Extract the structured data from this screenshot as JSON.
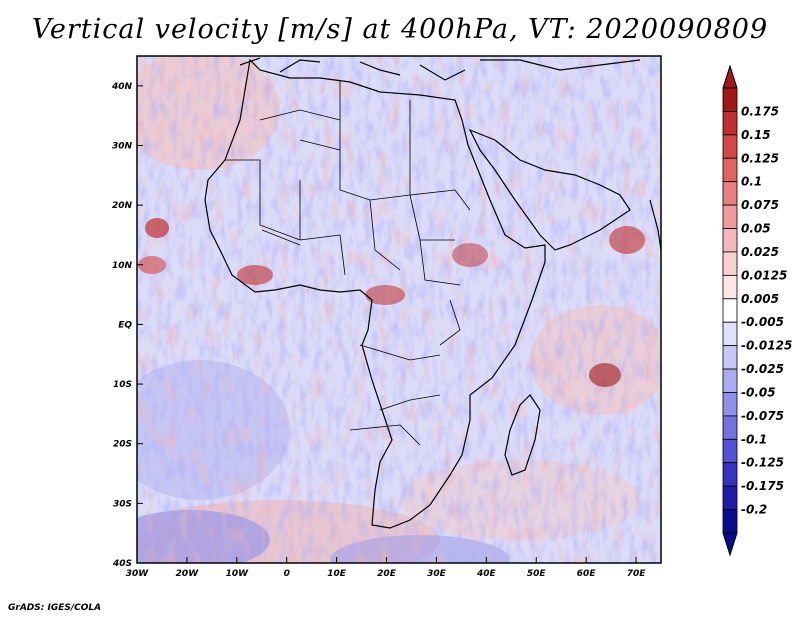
{
  "title": "Vertical velocity [m/s] at 400hPa, VT: 2020090809",
  "credit": "GrADS: IGES/COLA",
  "map": {
    "lon_range": [
      -30,
      75
    ],
    "lat_range": [
      -40,
      45
    ],
    "lon_ticks": [
      "30W",
      "20W",
      "10W",
      "0",
      "10E",
      "20E",
      "30E",
      "40E",
      "50E",
      "60E",
      "70E"
    ],
    "lat_ticks": [
      "40N",
      "30N",
      "20N",
      "10N",
      "EQ",
      "10S",
      "20S",
      "30S",
      "40S"
    ]
  },
  "colorbar": {
    "labels": [
      "0.175",
      "0.15",
      "0.125",
      "0.1",
      "0.075",
      "0.05",
      "0.025",
      "0.0125",
      "0.005",
      "-0.005",
      "-0.0125",
      "-0.025",
      "-0.05",
      "-0.075",
      "-0.1",
      "-0.125",
      "-0.175",
      "-0.2"
    ],
    "colors": [
      "#a01818",
      "#c03030",
      "#d44848",
      "#e06464",
      "#e88080",
      "#ef9c9c",
      "#f4b8b8",
      "#f8d0d0",
      "#fce6e6",
      "#ffffff",
      "#e0e0fa",
      "#c8c8f6",
      "#ababf0",
      "#9090ea",
      "#7272e0",
      "#5252d2",
      "#3434c0",
      "#1c1ca8",
      "#0a0a8e"
    ],
    "top_color": "#a01818",
    "bottom_color": "#0a0a8e"
  }
}
